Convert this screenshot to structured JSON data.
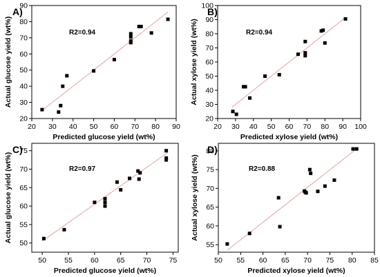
{
  "chart_data": [
    {
      "type": "scatter",
      "panel_label": "A)",
      "annotation": "R2=0.94",
      "xlabel": "Predicted glucose yield (wt%)",
      "ylabel": "Actual glucose yield (wt%)",
      "xlim": [
        20,
        90
      ],
      "ylim": [
        20,
        90
      ],
      "xticks": [
        "20",
        "30",
        "40",
        "50",
        "60",
        "70",
        "80",
        "90"
      ],
      "yticks": [
        "20",
        "30",
        "40",
        "50",
        "60",
        "70",
        "80",
        "90"
      ],
      "fit_line": [
        [
          25,
          25
        ],
        [
          86,
          86
        ]
      ],
      "x": [
        25,
        33,
        34,
        35,
        37,
        50,
        60,
        68,
        68,
        68,
        68,
        72,
        73,
        78,
        86
      ],
      "y": [
        25.5,
        24,
        28,
        40,
        46.5,
        49.5,
        56.5,
        72.5,
        70.5,
        68,
        67,
        77,
        77,
        73,
        81.5
      ]
    },
    {
      "type": "scatter",
      "panel_label": "B)",
      "annotation": "R2=0.94",
      "xlabel": "Predicted xylose yield (wt%)",
      "ylabel": "Actual xylose yield (wt%)",
      "xlim": [
        20,
        100
      ],
      "ylim": [
        20,
        100
      ],
      "xticks": [
        "20",
        "30",
        "40",
        "50",
        "60",
        "70",
        "80",
        "90",
        "100"
      ],
      "yticks": [
        "20",
        "30",
        "40",
        "50",
        "60",
        "70",
        "80",
        "90",
        "100"
      ],
      "fit_line": [
        [
          28,
          28
        ],
        [
          91,
          91
        ]
      ],
      "x": [
        28.5,
        30.5,
        34.5,
        35.5,
        38,
        46.5,
        54.5,
        65,
        69,
        69,
        69,
        78,
        79,
        80,
        91.5
      ],
      "y": [
        25,
        23,
        42.5,
        42.5,
        34.5,
        50,
        51,
        65.5,
        74.5,
        66.5,
        64.5,
        82,
        82.5,
        73.5,
        90.5
      ]
    },
    {
      "type": "scatter",
      "panel_label": "C)",
      "annotation": "R2=0.97",
      "xlabel": "Predicted glucose yield (wt%)",
      "ylabel": "Actual glucose yield (wt%)",
      "xlim": [
        48,
        76
      ],
      "ylim": [
        47.5,
        77
      ],
      "xticks": [
        "50",
        "55",
        "60",
        "65",
        "70",
        "75"
      ],
      "yticks": [
        "50",
        "55",
        "60",
        "65",
        "70",
        "75"
      ],
      "fit_line": [
        [
          50,
          50.5
        ],
        [
          74,
          74.5
        ]
      ],
      "x": [
        50.3,
        54.2,
        60,
        62,
        62,
        62,
        64.3,
        65,
        66.7,
        68.3,
        68.5,
        68.7,
        73.7,
        73.7,
        73.7
      ],
      "y": [
        51.2,
        53.6,
        61,
        60,
        61,
        62,
        66.5,
        64.4,
        67.5,
        69.5,
        67.3,
        69,
        75,
        73,
        72.5
      ]
    },
    {
      "type": "scatter",
      "panel_label": "D)",
      "annotation": "R2=0.88",
      "xlabel": "Predicted xylose yield (wt%)",
      "ylabel": "Actual xylose yield (wt%)",
      "xlim": [
        50,
        85
      ],
      "ylim": [
        53,
        82
      ],
      "xticks": [
        "50",
        "55",
        "60",
        "65",
        "70",
        "75",
        "80",
        "85"
      ],
      "yticks": [
        "55",
        "60",
        "65",
        "70",
        "75",
        "80"
      ],
      "fit_line": [
        [
          52,
          53.5
        ],
        [
          81.5,
          81
        ]
      ],
      "x": [
        52,
        57,
        63.5,
        63.8,
        69.3,
        69.5,
        69.7,
        70.5,
        70.7,
        72.3,
        73.9,
        76,
        80.2,
        81
      ],
      "y": [
        55.2,
        58,
        67.5,
        59.8,
        69.3,
        69,
        68.8,
        75,
        74,
        69.2,
        70.6,
        72.2,
        80.5,
        80.5
      ]
    }
  ]
}
